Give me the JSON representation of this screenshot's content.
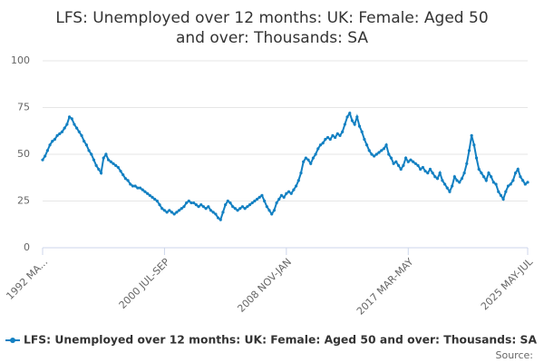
{
  "chart_data": {
    "type": "line",
    "title": [
      "LFS: Unemployed over 12 months: UK: Female: Aged 50",
      "and over: Thousands: SA"
    ],
    "source": "Source:",
    "categories": [
      "1992 MA...",
      null,
      null,
      null,
      null,
      null,
      null,
      null,
      null,
      null,
      null,
      null,
      null,
      null,
      null,
      null,
      null,
      null,
      null,
      null,
      null,
      null,
      null,
      null,
      null,
      null,
      null,
      null,
      null,
      null,
      null,
      null,
      null,
      null,
      null,
      null,
      null,
      null,
      null,
      null,
      null,
      null,
      null,
      null,
      null,
      null,
      null,
      null,
      null,
      null,
      "2000 JUL-SEP",
      null,
      null,
      null,
      null,
      null,
      null,
      null,
      null,
      null,
      null,
      null,
      null,
      null,
      null,
      null,
      null,
      null,
      null,
      null,
      null,
      null,
      null,
      null,
      null,
      null,
      null,
      null,
      null,
      null,
      null,
      null,
      null,
      null,
      null,
      null,
      null,
      null,
      null,
      null,
      null,
      null,
      null,
      null,
      null,
      null,
      null,
      null,
      null,
      null,
      "2008 NOV-JAN",
      null,
      null,
      null,
      null,
      null,
      null,
      null,
      null,
      null,
      null,
      null,
      null,
      null,
      null,
      null,
      null,
      null,
      null,
      null,
      null,
      null,
      null,
      null,
      null,
      null,
      null,
      null,
      null,
      null,
      null,
      null,
      null,
      null,
      null,
      null,
      null,
      null,
      null,
      null,
      null,
      null,
      null,
      null,
      null,
      null,
      null,
      null,
      null,
      null,
      "2017 MAR-MAY",
      null,
      null,
      null,
      null,
      null,
      null,
      null,
      null,
      null,
      null,
      null,
      null,
      null,
      null,
      null,
      null,
      null,
      null,
      null,
      null,
      null,
      null,
      null,
      null,
      null,
      null,
      null,
      null,
      null,
      null,
      null,
      null,
      null,
      null,
      null,
      null,
      null,
      null,
      null,
      null,
      null,
      null,
      null,
      null,
      null,
      null,
      null,
      null,
      "2025 MAY-JUL"
    ],
    "series": [
      {
        "name": "LFS: Unemployed over 12 months: UK: Female: Aged 50 and over: Thousands: SA",
        "color": "#1380c2",
        "values": [
          47,
          49,
          52,
          55,
          57,
          58,
          60,
          61,
          62,
          64,
          66,
          70,
          69,
          66,
          64,
          62,
          60,
          57,
          55,
          52,
          50,
          47,
          44,
          42,
          40,
          48,
          50,
          47,
          46,
          45,
          44,
          43,
          41,
          39,
          37,
          36,
          34,
          33,
          33,
          32,
          32,
          31,
          30,
          29,
          28,
          27,
          26,
          25,
          23,
          21,
          20,
          19,
          20,
          19,
          18,
          19,
          20,
          21,
          22,
          24,
          25,
          24,
          24,
          23,
          22,
          23,
          22,
          21,
          22,
          20,
          19,
          18,
          16,
          15,
          19,
          23,
          25,
          24,
          22,
          21,
          20,
          21,
          22,
          21,
          22,
          23,
          24,
          25,
          26,
          27,
          28,
          25,
          22,
          20,
          18,
          20,
          24,
          26,
          28,
          27,
          29,
          30,
          29,
          31,
          33,
          36,
          40,
          46,
          48,
          47,
          45,
          48,
          50,
          53,
          55,
          56,
          58,
          59,
          58,
          60,
          59,
          61,
          60,
          62,
          66,
          70,
          72,
          68,
          66,
          70,
          65,
          62,
          58,
          55,
          52,
          50,
          49,
          50,
          51,
          52,
          53,
          55,
          50,
          48,
          45,
          46,
          44,
          42,
          44,
          48,
          46,
          47,
          46,
          45,
          44,
          42,
          43,
          41,
          40,
          42,
          40,
          38,
          37,
          40,
          36,
          34,
          32,
          30,
          33,
          38,
          36,
          35,
          37,
          40,
          45,
          52,
          60,
          55,
          48,
          42,
          40,
          38,
          36,
          40,
          38,
          35,
          34,
          30,
          28,
          26,
          30,
          33,
          34,
          36,
          40,
          42,
          38,
          36,
          34,
          35
        ]
      }
    ],
    "ylim": [
      0,
      100
    ],
    "yticks": [
      0,
      25,
      50,
      75,
      100
    ],
    "grid": true
  }
}
